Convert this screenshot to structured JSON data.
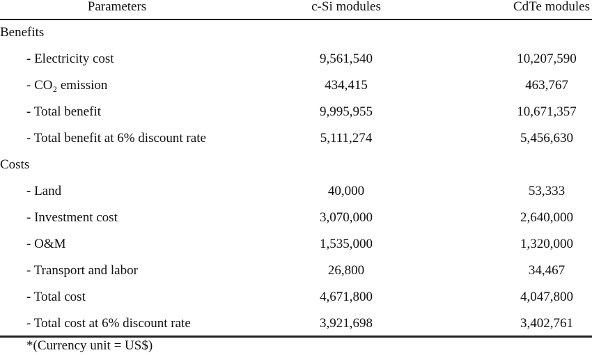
{
  "table": {
    "header": [
      "Parameters",
      "c-Si modules",
      "CdTe modules"
    ],
    "sections": [
      {
        "title": "Benefits",
        "rows": [
          [
            "- Electricity cost",
            "9,561,540",
            "10,207,590"
          ],
          [
            "- CO₂ emission",
            "434,415",
            "463,767"
          ],
          [
            "- Total benefit",
            "9,995,955",
            "10,671,357"
          ],
          [
            "- Total benefit at 6% discount rate",
            "5,111,274",
            "5,456,630"
          ]
        ]
      },
      {
        "title": "Costs",
        "rows": [
          [
            "- Land",
            "40,000",
            "53,333"
          ],
          [
            "- Investment cost",
            "3,070,000",
            "2,640,000"
          ],
          [
            "- O&M",
            "1,535,000",
            "1,320,000"
          ],
          [
            "- Transport and labor",
            "26,800",
            "34,467"
          ],
          [
            "- Total cost",
            "4,671,800",
            "4,047,800"
          ],
          [
            "- Total cost at 6% discount rate",
            "3,921,698",
            "3,402,761"
          ]
        ]
      }
    ]
  },
  "footnote": "*(Currency unit = US$)"
}
